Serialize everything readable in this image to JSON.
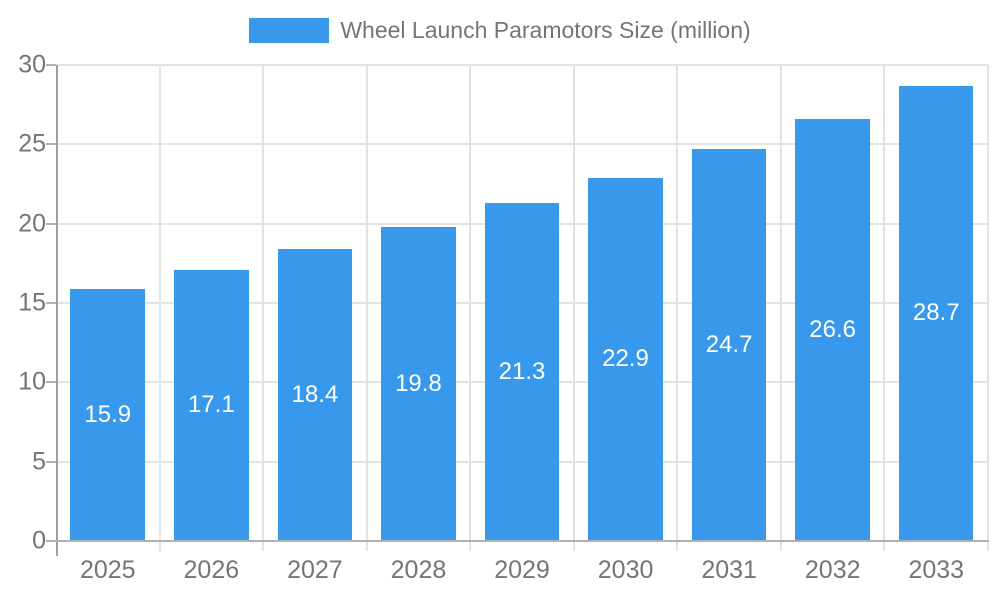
{
  "chart_data": {
    "type": "bar",
    "legend_label": "Wheel Launch Paramotors Size (million)",
    "categories": [
      "2025",
      "2026",
      "2027",
      "2028",
      "2029",
      "2030",
      "2031",
      "2032",
      "2033"
    ],
    "values": [
      15.9,
      17.1,
      18.4,
      19.8,
      21.3,
      22.9,
      24.7,
      26.6,
      28.7
    ],
    "y_ticks": [
      0,
      5,
      10,
      15,
      20,
      25,
      30
    ],
    "ylim": [
      0,
      30
    ],
    "legend_position": "top",
    "grid": "on",
    "colors": {
      "bar": "#3898ec",
      "value_label": "#ffffff",
      "axis_text": "#757575",
      "gridline": "#e3e3e3",
      "y_axis_line": "#9e9e9e",
      "x_axis_line": "#b0b0b0"
    }
  }
}
